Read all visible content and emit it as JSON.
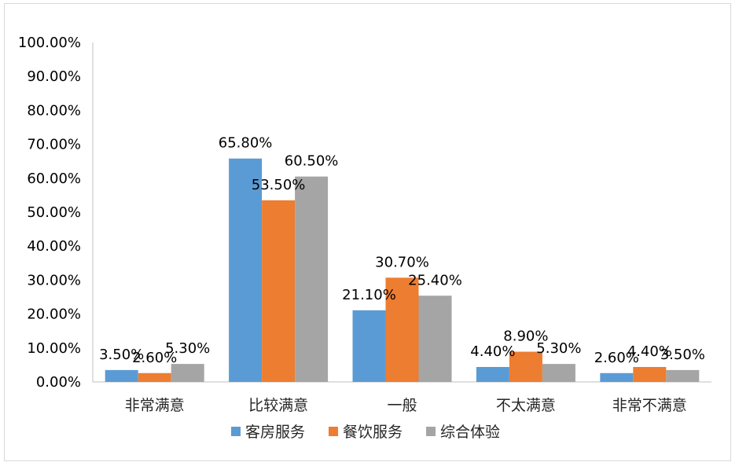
{
  "chart_data": {
    "type": "bar",
    "title": "",
    "xlabel": "",
    "ylabel": "",
    "ylim": [
      0,
      100
    ],
    "y_ticks": [
      "0.00%",
      "10.00%",
      "20.00%",
      "30.00%",
      "40.00%",
      "50.00%",
      "60.00%",
      "70.00%",
      "80.00%",
      "90.00%",
      "100.00%"
    ],
    "categories": [
      "非常满意",
      "比较满意",
      "一般",
      "不太满意",
      "非常不满意"
    ],
    "series": [
      {
        "name": "客房服务",
        "color": "#5b9bd5",
        "values": [
          3.5,
          65.8,
          21.1,
          4.4,
          2.6
        ],
        "labels": [
          "3.50%",
          "65.80%",
          "21.10%",
          "4.40%",
          "2.60%"
        ]
      },
      {
        "name": "餐饮服务",
        "color": "#ed7d31",
        "values": [
          2.6,
          53.5,
          30.7,
          8.9,
          4.4
        ],
        "labels": [
          "2.60%",
          "53.50%",
          "30.70%",
          "8.90%",
          "4.40%"
        ]
      },
      {
        "name": "综合体验",
        "color": "#a5a5a5",
        "values": [
          5.3,
          60.5,
          25.4,
          5.3,
          3.5
        ],
        "labels": [
          "5.30%",
          "60.50%",
          "25.40%",
          "5.30%",
          "3.50%"
        ]
      }
    ],
    "grid": false,
    "legend": "bottom"
  }
}
